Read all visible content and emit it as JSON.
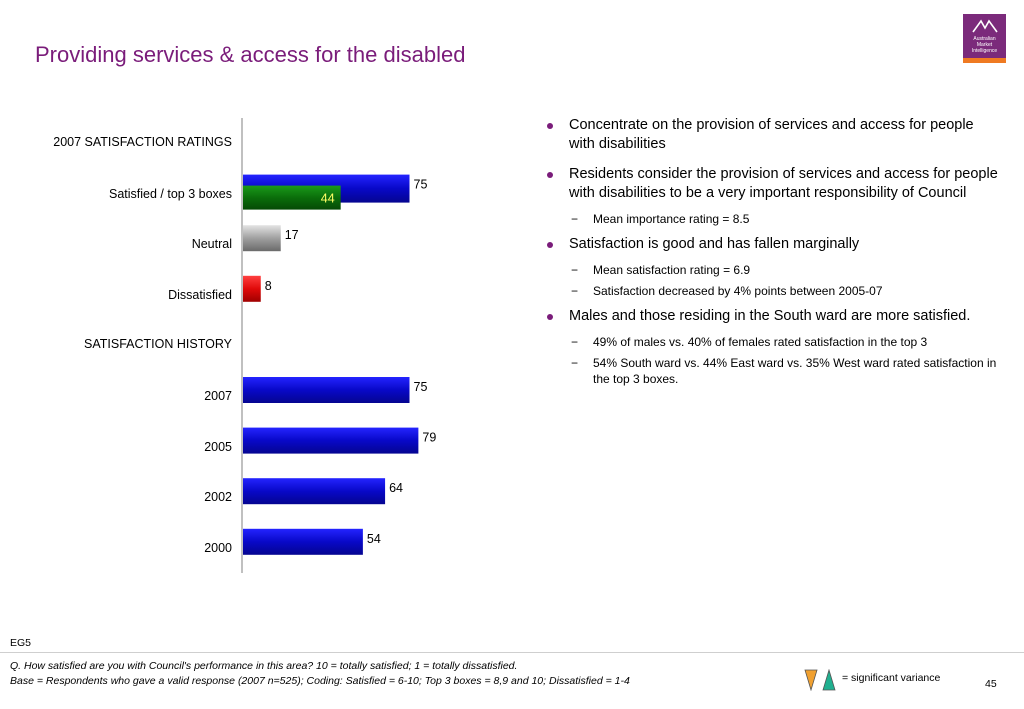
{
  "title": "Providing services & access for the disabled",
  "logo": {
    "text": "Australian Market Intelligence",
    "bg": "#7b2a7b",
    "accent": "#ef7a22"
  },
  "chart_data": {
    "type": "bar",
    "orientation": "horizontal",
    "xlim": [
      0,
      100
    ],
    "rows": [
      {
        "label": "2007 SATISFACTION RATINGS",
        "kind": "header"
      },
      {
        "label": "Satisfied / top 3 boxes",
        "kind": "bars",
        "bars": [
          {
            "value": 75,
            "color": "blue"
          },
          {
            "value": 44,
            "color": "green"
          }
        ]
      },
      {
        "label": "Neutral",
        "kind": "bars",
        "bars": [
          {
            "value": 17,
            "color": "grey"
          }
        ]
      },
      {
        "label": "Dissatisfied",
        "kind": "bars",
        "bars": [
          {
            "value": 8,
            "color": "red"
          }
        ]
      },
      {
        "label": "SATISFACTION HISTORY",
        "kind": "header"
      },
      {
        "label": "2007",
        "kind": "bars",
        "bars": [
          {
            "value": 75,
            "color": "blue"
          }
        ]
      },
      {
        "label": "2005",
        "kind": "bars",
        "bars": [
          {
            "value": 79,
            "color": "blue"
          }
        ]
      },
      {
        "label": "2002",
        "kind": "bars",
        "bars": [
          {
            "value": 64,
            "color": "blue"
          }
        ]
      },
      {
        "label": "2000",
        "kind": "bars",
        "bars": [
          {
            "value": 54,
            "color": "blue"
          }
        ]
      }
    ],
    "colors": {
      "blue": "#0a0ad8",
      "green": "#0d7a0d",
      "grey": "#a8a8a8",
      "red": "#e01010"
    }
  },
  "bullets": [
    {
      "text": "Concentrate on the provision of services and access for people with disabilities",
      "subs": []
    },
    {
      "text": "Residents consider the provision of services and access for people with disabilities to be a very important responsibility of Council",
      "subs": [
        "Mean importance rating = 8.5"
      ]
    },
    {
      "text": "Satisfaction is good and has fallen marginally",
      "subs": [
        "Mean satisfaction rating = 6.9",
        "Satisfaction decreased by 4% points between 2005-07"
      ]
    },
    {
      "text": "Males and those residing in the South ward are more satisfied.",
      "subs": [
        "49% of males vs. 40% of females rated satisfaction in the top 3",
        "54% South ward vs. 44% East ward vs. 35% West ward rated satisfaction in the top 3 boxes."
      ]
    }
  ],
  "footer": {
    "code": "EG5",
    "question": "Q. How satisfied are you with Council's performance in this area? 10 = totally satisfied; 1 = totally dissatisfied.",
    "base": "Base = Respondents who gave a valid response (2007 n=525); Coding: Satisfied = 6-10; Top 3 boxes = 8,9 and 10; Dissatisfied = 1-4",
    "legend": "= significant variance",
    "legend_colors": {
      "down": "#f0a030",
      "up": "#20b090"
    },
    "page": "45"
  }
}
